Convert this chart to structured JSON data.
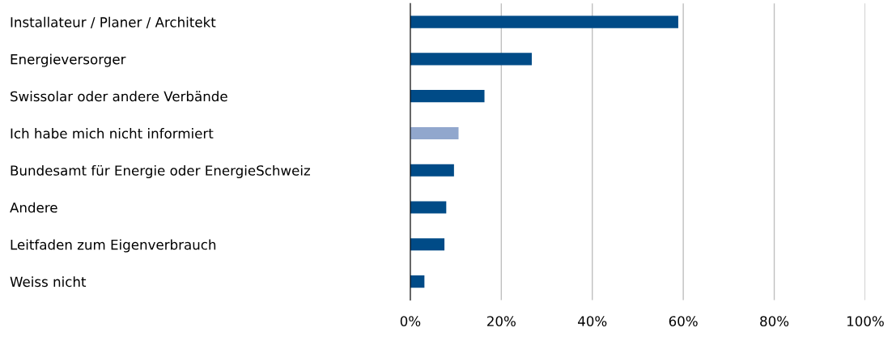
{
  "chart_data": {
    "type": "bar",
    "orientation": "horizontal",
    "categories": [
      "Installateur / Planer / Architekt",
      "Energieversorger",
      "Swissolar oder andere Verbände",
      "Ich habe mich nicht informiert",
      "Bundesamt für Energie oder EnergieSchweiz",
      "Andere",
      "Leitfaden zum Eigenverbrauch",
      "Weiss nicht"
    ],
    "values": [
      58.9,
      26.7,
      16.3,
      10.6,
      9.6,
      7.9,
      7.5,
      3.1
    ],
    "colors": [
      "#004b87",
      "#004b87",
      "#004b87",
      "#91a7cd",
      "#004b87",
      "#004b87",
      "#004b87",
      "#004b87"
    ],
    "xlim": [
      0,
      100
    ],
    "xticks": [
      {
        "value": 0,
        "label": "0%"
      },
      {
        "value": 20,
        "label": "20%"
      },
      {
        "value": 40,
        "label": "40%"
      },
      {
        "value": 60,
        "label": "60%"
      },
      {
        "value": 80,
        "label": "80%"
      },
      {
        "value": 100,
        "label": "100%"
      }
    ],
    "grid": "x",
    "legend": false
  }
}
